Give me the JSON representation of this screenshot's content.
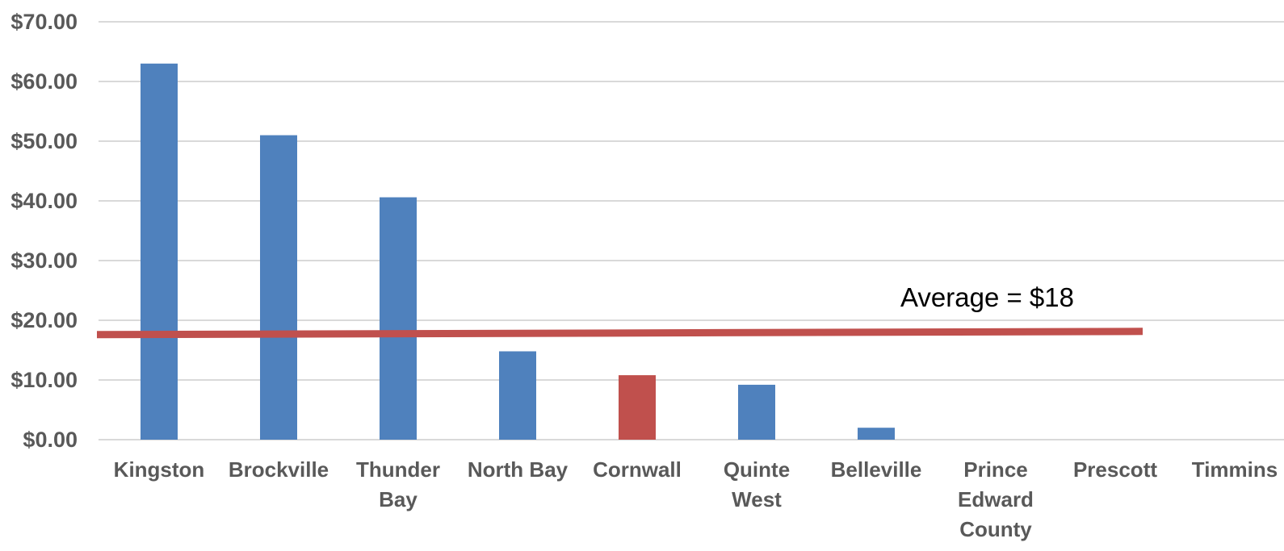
{
  "chart_data": {
    "type": "bar",
    "title": "",
    "xlabel": "",
    "ylabel": "",
    "categories": [
      [
        "Kingston"
      ],
      [
        "Brockville"
      ],
      [
        "Thunder",
        "Bay"
      ],
      [
        "North Bay"
      ],
      [
        "Cornwall"
      ],
      [
        "Quinte",
        "West"
      ],
      [
        "Belleville"
      ],
      [
        "Prince",
        "Edward",
        "County"
      ],
      [
        "Prescott"
      ],
      [
        "Timmins"
      ]
    ],
    "values": [
      63,
      51,
      40.6,
      14.8,
      10.8,
      9.2,
      2,
      0,
      0,
      0
    ],
    "highlight_index": 4,
    "ylim": [
      0,
      70
    ],
    "ytick_values": [
      0,
      10,
      20,
      30,
      40,
      50,
      60,
      70
    ],
    "ytick_labels": [
      "$0.00",
      "$10.00",
      "$20.00",
      "$30.00",
      "$40.00",
      "$50.00",
      "$60.00",
      "$70.00"
    ],
    "grid": true,
    "bar_color": "#4f81bd",
    "highlight_color": "#c0504d",
    "average": {
      "value": 18,
      "label": "Average = $18",
      "color": "#c0504d"
    }
  }
}
